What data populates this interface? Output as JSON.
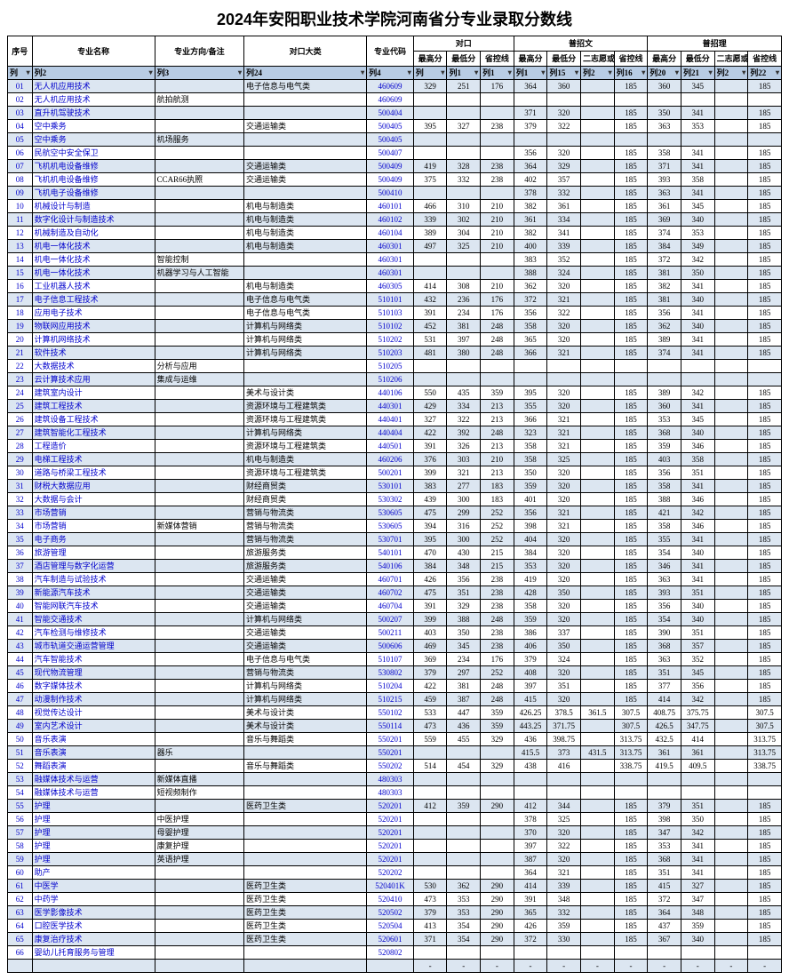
{
  "title": "2024年安阳职业技术学院河南省分专业录取分数线",
  "headers": {
    "idx": "序号",
    "name": "专业名称",
    "dir": "专业方向/备注",
    "cat": "对口大类",
    "code": "专业代码",
    "group_dk": "对口",
    "group_pzw": "普招文",
    "group_pzl": "普招理",
    "high": "最高分",
    "low": "最低分",
    "prov": "省控线",
    "sec": "二志愿或征集志愿最低分"
  },
  "filter": [
    "列",
    "列2",
    "列3",
    "列24",
    "列4",
    "列",
    "列1",
    "列1",
    "列1",
    "列15",
    "列2",
    "列16",
    "列20",
    "列21",
    "列2",
    "列22"
  ],
  "rows": [
    [
      "01",
      "无人机应用技术",
      "",
      "电子信息与电气类",
      "460609",
      "329",
      "251",
      "176",
      "364",
      "360",
      "",
      "185",
      "360",
      "345",
      "",
      "185"
    ],
    [
      "02",
      "无人机应用技术",
      "航拍航测",
      "",
      "460609",
      "",
      "",
      "",
      "",
      "",
      "",
      "",
      "",
      "",
      "",
      ""
    ],
    [
      "03",
      "直升机驾驶技术",
      "",
      "",
      "500404",
      "",
      "",
      "",
      "371",
      "320",
      "",
      "185",
      "350",
      "341",
      "",
      "185"
    ],
    [
      "04",
      "空中乘务",
      "",
      "交通运输类",
      "500405",
      "395",
      "327",
      "238",
      "379",
      "322",
      "",
      "185",
      "363",
      "353",
      "",
      "185"
    ],
    [
      "05",
      "空中乘务",
      "机场服务",
      "",
      "500405",
      "",
      "",
      "",
      "",
      "",
      "",
      "",
      "",
      "",
      "",
      ""
    ],
    [
      "06",
      "民航空中安全保卫",
      "",
      "",
      "500407",
      "",
      "",
      "",
      "356",
      "320",
      "",
      "185",
      "358",
      "341",
      "",
      "185"
    ],
    [
      "07",
      "飞机机电设备维修",
      "",
      "交通运输类",
      "500409",
      "419",
      "328",
      "238",
      "364",
      "329",
      "",
      "185",
      "371",
      "341",
      "",
      "185"
    ],
    [
      "08",
      "飞机机电设备维修",
      "CCAR66执照",
      "交通运输类",
      "500409",
      "375",
      "332",
      "238",
      "402",
      "357",
      "",
      "185",
      "393",
      "358",
      "",
      "185"
    ],
    [
      "09",
      "飞机电子设备维修",
      "",
      "",
      "500410",
      "",
      "",
      "",
      "378",
      "332",
      "",
      "185",
      "363",
      "341",
      "",
      "185"
    ],
    [
      "10",
      "机械设计与制造",
      "",
      "机电与制造类",
      "460101",
      "466",
      "310",
      "210",
      "382",
      "361",
      "",
      "185",
      "361",
      "345",
      "",
      "185"
    ],
    [
      "11",
      "数字化设计与制造技术",
      "",
      "机电与制造类",
      "460102",
      "339",
      "302",
      "210",
      "361",
      "334",
      "",
      "185",
      "369",
      "340",
      "",
      "185"
    ],
    [
      "12",
      "机械制造及自动化",
      "",
      "机电与制造类",
      "460104",
      "389",
      "304",
      "210",
      "382",
      "341",
      "",
      "185",
      "374",
      "353",
      "",
      "185"
    ],
    [
      "13",
      "机电一体化技术",
      "",
      "机电与制造类",
      "460301",
      "497",
      "325",
      "210",
      "400",
      "339",
      "",
      "185",
      "384",
      "349",
      "",
      "185"
    ],
    [
      "14",
      "机电一体化技术",
      "智能控制",
      "",
      "460301",
      "",
      "",
      "",
      "383",
      "352",
      "",
      "185",
      "372",
      "342",
      "",
      "185"
    ],
    [
      "15",
      "机电一体化技术",
      "机器学习与人工智能",
      "",
      "460301",
      "",
      "",
      "",
      "388",
      "324",
      "",
      "185",
      "381",
      "350",
      "",
      "185"
    ],
    [
      "16",
      "工业机器人技术",
      "",
      "机电与制造类",
      "460305",
      "414",
      "308",
      "210",
      "362",
      "320",
      "",
      "185",
      "382",
      "341",
      "",
      "185"
    ],
    [
      "17",
      "电子信息工程技术",
      "",
      "电子信息与电气类",
      "510101",
      "432",
      "236",
      "176",
      "372",
      "321",
      "",
      "185",
      "381",
      "340",
      "",
      "185"
    ],
    [
      "18",
      "应用电子技术",
      "",
      "电子信息与电气类",
      "510103",
      "391",
      "234",
      "176",
      "356",
      "322",
      "",
      "185",
      "356",
      "341",
      "",
      "185"
    ],
    [
      "19",
      "物联网应用技术",
      "",
      "计算机与网络类",
      "510102",
      "452",
      "381",
      "248",
      "358",
      "320",
      "",
      "185",
      "362",
      "340",
      "",
      "185"
    ],
    [
      "20",
      "计算机网络技术",
      "",
      "计算机与网络类",
      "510202",
      "531",
      "397",
      "248",
      "365",
      "320",
      "",
      "185",
      "389",
      "341",
      "",
      "185"
    ],
    [
      "21",
      "软件技术",
      "",
      "计算机与网络类",
      "510203",
      "481",
      "380",
      "248",
      "366",
      "321",
      "",
      "185",
      "374",
      "341",
      "",
      "185"
    ],
    [
      "22",
      "大数据技术",
      "分析与应用",
      "",
      "510205",
      "",
      "",
      "",
      "",
      "",
      "",
      "",
      "",
      "",
      "",
      ""
    ],
    [
      "23",
      "云计算技术应用",
      "集成与运维",
      "",
      "510206",
      "",
      "",
      "",
      "",
      "",
      "",
      "",
      "",
      "",
      "",
      ""
    ],
    [
      "24",
      "建筑室内设计",
      "",
      "美术与设计类",
      "440106",
      "550",
      "435",
      "359",
      "395",
      "320",
      "",
      "185",
      "389",
      "342",
      "",
      "185"
    ],
    [
      "25",
      "建筑工程技术",
      "",
      "资源环境与工程建筑类",
      "440301",
      "429",
      "334",
      "213",
      "355",
      "320",
      "",
      "185",
      "360",
      "341",
      "",
      "185"
    ],
    [
      "26",
      "建筑设备工程技术",
      "",
      "资源环境与工程建筑类",
      "440401",
      "327",
      "322",
      "213",
      "366",
      "321",
      "",
      "185",
      "353",
      "345",
      "",
      "185"
    ],
    [
      "27",
      "建筑智能化工程技术",
      "",
      "计算机与网络类",
      "440404",
      "422",
      "392",
      "248",
      "323",
      "321",
      "",
      "185",
      "368",
      "340",
      "",
      "185"
    ],
    [
      "28",
      "工程造价",
      "",
      "资源环境与工程建筑类",
      "440501",
      "391",
      "326",
      "213",
      "358",
      "321",
      "",
      "185",
      "359",
      "346",
      "",
      "185"
    ],
    [
      "29",
      "电梯工程技术",
      "",
      "机电与制造类",
      "460206",
      "376",
      "303",
      "210",
      "358",
      "325",
      "",
      "185",
      "403",
      "358",
      "",
      "185"
    ],
    [
      "30",
      "道路与桥梁工程技术",
      "",
      "资源环境与工程建筑类",
      "500201",
      "399",
      "321",
      "213",
      "350",
      "320",
      "",
      "185",
      "356",
      "351",
      "",
      "185"
    ],
    [
      "31",
      "财税大数据应用",
      "",
      "财经商贸类",
      "530101",
      "383",
      "277",
      "183",
      "359",
      "320",
      "",
      "185",
      "358",
      "341",
      "",
      "185"
    ],
    [
      "32",
      "大数据与会计",
      "",
      "财经商贸类",
      "530302",
      "439",
      "300",
      "183",
      "401",
      "320",
      "",
      "185",
      "388",
      "346",
      "",
      "185"
    ],
    [
      "33",
      "市场营销",
      "",
      "营销与物流类",
      "530605",
      "475",
      "299",
      "252",
      "356",
      "321",
      "",
      "185",
      "421",
      "342",
      "",
      "185"
    ],
    [
      "34",
      "市场营销",
      "新媒体营销",
      "营销与物流类",
      "530605",
      "394",
      "316",
      "252",
      "398",
      "321",
      "",
      "185",
      "358",
      "346",
      "",
      "185"
    ],
    [
      "35",
      "电子商务",
      "",
      "营销与物流类",
      "530701",
      "395",
      "300",
      "252",
      "404",
      "320",
      "",
      "185",
      "355",
      "341",
      "",
      "185"
    ],
    [
      "36",
      "旅游管理",
      "",
      "旅游服务类",
      "540101",
      "470",
      "430",
      "215",
      "384",
      "320",
      "",
      "185",
      "354",
      "340",
      "",
      "185"
    ],
    [
      "37",
      "酒店管理与数字化运营",
      "",
      "旅游服务类",
      "540106",
      "384",
      "348",
      "215",
      "353",
      "320",
      "",
      "185",
      "346",
      "341",
      "",
      "185"
    ],
    [
      "38",
      "汽车制造与试验技术",
      "",
      "交通运输类",
      "460701",
      "426",
      "356",
      "238",
      "419",
      "320",
      "",
      "185",
      "363",
      "341",
      "",
      "185"
    ],
    [
      "39",
      "新能源汽车技术",
      "",
      "交通运输类",
      "460702",
      "475",
      "351",
      "238",
      "428",
      "350",
      "",
      "185",
      "393",
      "351",
      "",
      "185"
    ],
    [
      "40",
      "智能网联汽车技术",
      "",
      "交通运输类",
      "460704",
      "391",
      "329",
      "238",
      "358",
      "320",
      "",
      "185",
      "356",
      "340",
      "",
      "185"
    ],
    [
      "41",
      "智能交通技术",
      "",
      "计算机与网络类",
      "500207",
      "399",
      "388",
      "248",
      "359",
      "320",
      "",
      "185",
      "354",
      "340",
      "",
      "185"
    ],
    [
      "42",
      "汽车检测与维修技术",
      "",
      "交通运输类",
      "500211",
      "403",
      "350",
      "238",
      "386",
      "337",
      "",
      "185",
      "390",
      "351",
      "",
      "185"
    ],
    [
      "43",
      "城市轨道交通运营管理",
      "",
      "交通运输类",
      "500606",
      "469",
      "345",
      "238",
      "406",
      "350",
      "",
      "185",
      "368",
      "357",
      "",
      "185"
    ],
    [
      "44",
      "汽车智能技术",
      "",
      "电子信息与电气类",
      "510107",
      "369",
      "234",
      "176",
      "379",
      "324",
      "",
      "185",
      "363",
      "352",
      "",
      "185"
    ],
    [
      "45",
      "现代物流管理",
      "",
      "营销与物流类",
      "530802",
      "379",
      "297",
      "252",
      "408",
      "320",
      "",
      "185",
      "351",
      "345",
      "",
      "185"
    ],
    [
      "46",
      "数字媒体技术",
      "",
      "计算机与网络类",
      "510204",
      "422",
      "381",
      "248",
      "397",
      "351",
      "",
      "185",
      "377",
      "356",
      "",
      "185"
    ],
    [
      "47",
      "动漫制作技术",
      "",
      "计算机与网络类",
      "510215",
      "459",
      "387",
      "248",
      "415",
      "320",
      "",
      "185",
      "414",
      "342",
      "",
      "185"
    ],
    [
      "48",
      "视觉传达设计",
      "",
      "美术与设计类",
      "550102",
      "533",
      "447",
      "359",
      "426.25",
      "378.5",
      "361.5",
      "307.5",
      "408.75",
      "375.75",
      "",
      "307.5"
    ],
    [
      "49",
      "室内艺术设计",
      "",
      "美术与设计类",
      "550114",
      "473",
      "436",
      "359",
      "443.25",
      "371.75",
      "",
      "307.5",
      "426.5",
      "347.75",
      "",
      "307.5"
    ],
    [
      "50",
      "音乐表演",
      "",
      "音乐与舞蹈类",
      "550201",
      "559",
      "455",
      "329",
      "436",
      "398.75",
      "",
      "313.75",
      "432.5",
      "414",
      "",
      "313.75"
    ],
    [
      "51",
      "音乐表演",
      "器乐",
      "",
      "550201",
      "",
      "",
      "",
      "415.5",
      "373",
      "431.5",
      "313.75",
      "361",
      "361",
      "",
      "313.75"
    ],
    [
      "52",
      "舞蹈表演",
      "",
      "音乐与舞蹈类",
      "550202",
      "514",
      "454",
      "329",
      "438",
      "416",
      "",
      "338.75",
      "419.5",
      "409.5",
      "",
      "338.75"
    ],
    [
      "53",
      "融媒体技术与运营",
      "新媒体直播",
      "",
      "480303",
      "",
      "",
      "",
      "",
      "",
      "",
      "",
      "",
      "",
      "",
      ""
    ],
    [
      "54",
      "融媒体技术与运营",
      "短视频制作",
      "",
      "480303",
      "",
      "",
      "",
      "",
      "",
      "",
      "",
      "",
      "",
      "",
      ""
    ],
    [
      "55",
      "护理",
      "",
      "医药卫生类",
      "520201",
      "412",
      "359",
      "290",
      "412",
      "344",
      "",
      "185",
      "379",
      "351",
      "",
      "185"
    ],
    [
      "56",
      "护理",
      "中医护理",
      "",
      "520201",
      "",
      "",
      "",
      "378",
      "325",
      "",
      "185",
      "398",
      "350",
      "",
      "185"
    ],
    [
      "57",
      "护理",
      "母婴护理",
      "",
      "520201",
      "",
      "",
      "",
      "370",
      "320",
      "",
      "185",
      "347",
      "342",
      "",
      "185"
    ],
    [
      "58",
      "护理",
      "康复护理",
      "",
      "520201",
      "",
      "",
      "",
      "397",
      "322",
      "",
      "185",
      "353",
      "341",
      "",
      "185"
    ],
    [
      "59",
      "护理",
      "英语护理",
      "",
      "520201",
      "",
      "",
      "",
      "387",
      "320",
      "",
      "185",
      "368",
      "341",
      "",
      "185"
    ],
    [
      "60",
      "助产",
      "",
      "",
      "520202",
      "",
      "",
      "",
      "364",
      "321",
      "",
      "185",
      "351",
      "341",
      "",
      "185"
    ],
    [
      "61",
      "中医学",
      "",
      "医药卫生类",
      "520401K",
      "530",
      "362",
      "290",
      "414",
      "339",
      "",
      "185",
      "415",
      "327",
      "",
      "185"
    ],
    [
      "62",
      "中药学",
      "",
      "医药卫生类",
      "520410",
      "473",
      "353",
      "290",
      "391",
      "348",
      "",
      "185",
      "372",
      "347",
      "",
      "185"
    ],
    [
      "63",
      "医学影像技术",
      "",
      "医药卫生类",
      "520502",
      "379",
      "353",
      "290",
      "365",
      "332",
      "",
      "185",
      "364",
      "348",
      "",
      "185"
    ],
    [
      "64",
      "口腔医学技术",
      "",
      "医药卫生类",
      "520504",
      "413",
      "354",
      "290",
      "426",
      "359",
      "",
      "185",
      "437",
      "359",
      "",
      "185"
    ],
    [
      "65",
      "康复治疗技术",
      "",
      "医药卫生类",
      "520601",
      "371",
      "354",
      "290",
      "372",
      "330",
      "",
      "185",
      "367",
      "340",
      "",
      "185"
    ],
    [
      "66",
      "婴幼儿托育服务与管理",
      "",
      "",
      "520802",
      "",
      "",
      "",
      "",
      "",
      "",
      "",
      "",
      "",
      "",
      ""
    ],
    [
      "",
      "",
      "",
      "",
      "",
      "-",
      "-",
      "-",
      "-",
      "-",
      "-",
      "-",
      "-",
      "-",
      "-",
      "-"
    ]
  ],
  "alt_pattern_start": 0
}
